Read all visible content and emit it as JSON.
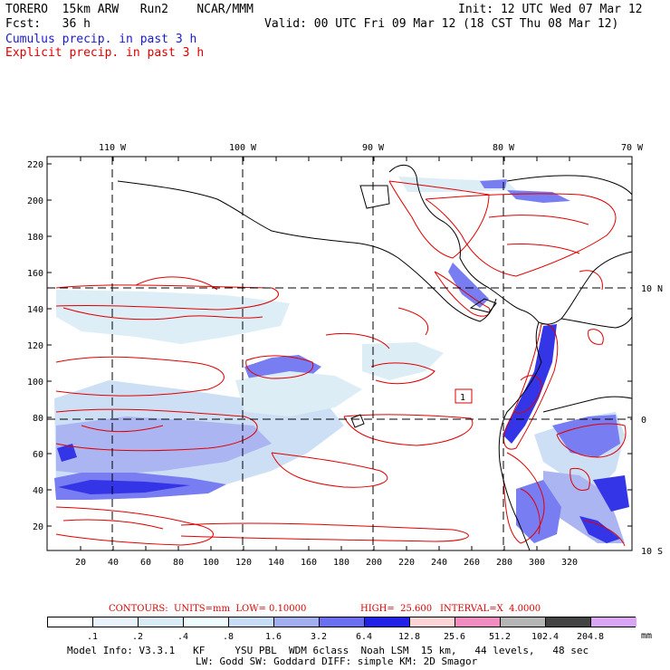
{
  "header": {
    "model": "TORERO  15km ARW   Run2    NCAR/MMM",
    "init": "Init: 12 UTC Wed 07 Mar 12",
    "fcst": "Fcst:   36 h",
    "valid": "Valid: 00 UTC Fri 09 Mar 12 (18 CST Thu 08 Mar 12)",
    "cumulus": "Cumulus precip. in past 3 h",
    "explicit": "Explicit precip. in past 3 h",
    "cumulus_color": "#1a1acc",
    "explicit_color": "#dd0000"
  },
  "map": {
    "lon_labels": [
      "110 W",
      "100 W",
      "90 W",
      "80 W",
      "70 W"
    ],
    "lat_labels": [
      "10 N",
      "0",
      "10 S"
    ],
    "y_ticks": [
      "220",
      "200",
      "180",
      "160",
      "140",
      "120",
      "100",
      "80",
      "60",
      "40",
      "20"
    ],
    "x_ticks": [
      "20",
      "40",
      "60",
      "80",
      "100",
      "120",
      "140",
      "160",
      "180",
      "200",
      "220",
      "240",
      "260",
      "280",
      "300",
      "320"
    ],
    "box_label": "1"
  },
  "contours": {
    "units": "CONTOURS:  UNITS=mm  LOW= 0.10000",
    "high": "HIGH=  25.600",
    "interval": "INTERVAL=X  4.0000"
  },
  "legend": {
    "labels": [
      ".1",
      ".2",
      ".4",
      ".8",
      "1.6",
      "3.2",
      "6.4",
      "12.8",
      "25.6",
      "51.2",
      "102.4",
      "204.8"
    ],
    "unit": "mm",
    "colors": [
      "#ffffff",
      "#eaf3fb",
      "#d9ecf5",
      "#eefcff",
      "#c8dcf5",
      "#a3aef0",
      "#6a6ff0",
      "#2020e6",
      "#fbd5d5",
      "#f08cc0",
      "#b5b5b5",
      "#444444",
      "#d9a6f5"
    ]
  },
  "footer": {
    "line1": "Model Info: V3.3.1   KF     YSU PBL  WDM 6class  Noah LSM  15 km,   44 levels,   48 sec",
    "line2": "LW: Godd SW: Goddard DIFF: simple KM: 2D Smagor"
  }
}
